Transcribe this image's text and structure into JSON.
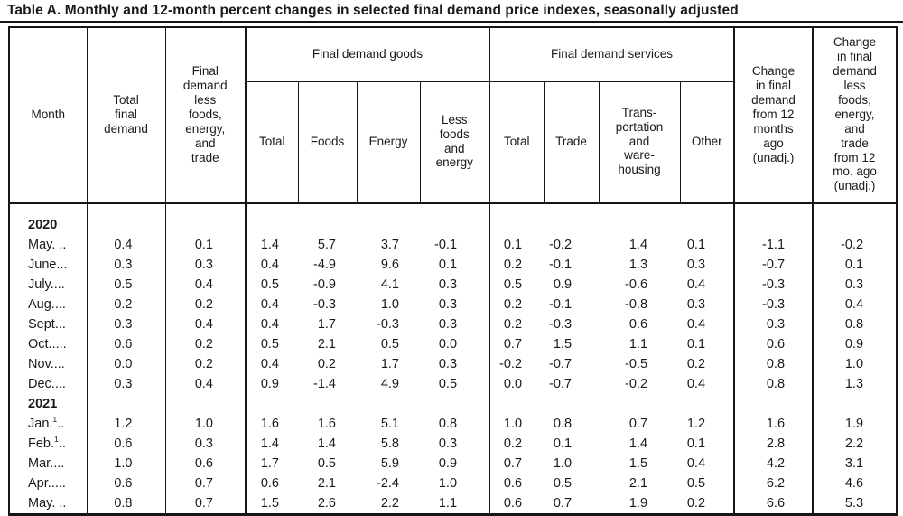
{
  "title": "Table A. Monthly and 12-month percent changes in selected final demand price indexes, seasonally adjusted",
  "table": {
    "header": {
      "month": "Month",
      "total_final_demand": "Total\nfinal\ndemand",
      "less_fet": "Final\ndemand\nless\nfoods,\nenergy,\nand\ntrade",
      "goods_group": "Final demand goods",
      "goods_cols": [
        "Total",
        "Foods",
        "Energy",
        "Less\nfoods\nand\nenergy"
      ],
      "services_group": "Final demand services",
      "services_cols": [
        "Total",
        "Trade",
        "Trans-\nportation\nand\nware-\nhousing",
        "Other"
      ],
      "change_12mo": "Change\nin final\ndemand\nfrom 12\nmonths\nago\n(unadj.)",
      "change_12mo_less_fet": "Change\nin final\ndemand\nless\nfoods,\nenergy,\nand\ntrade\nfrom 12\nmo. ago\n(unadj.)"
    },
    "rows": [
      {
        "type": "year",
        "label": "2020"
      },
      {
        "type": "data",
        "month": "May. ..",
        "sup": "",
        "trail": "",
        "values": [
          "0.4",
          "0.1",
          "1.4",
          "5.7",
          "3.7",
          "-0.1",
          "0.1",
          "-0.2",
          "1.4",
          "0.1",
          "-1.1",
          "-0.2"
        ]
      },
      {
        "type": "data",
        "month": "June...",
        "sup": "",
        "trail": "",
        "values": [
          "0.3",
          "0.3",
          "0.4",
          "-4.9",
          "9.6",
          "0.1",
          "0.2",
          "-0.1",
          "1.3",
          "0.3",
          "-0.7",
          "0.1"
        ]
      },
      {
        "type": "data",
        "month": "July....",
        "sup": "",
        "trail": "",
        "values": [
          "0.5",
          "0.4",
          "0.5",
          "-0.9",
          "4.1",
          "0.3",
          "0.5",
          "0.9",
          "-0.6",
          "0.4",
          "-0.3",
          "0.3"
        ]
      },
      {
        "type": "data",
        "month": "Aug....",
        "sup": "",
        "trail": "",
        "values": [
          "0.2",
          "0.2",
          "0.4",
          "-0.3",
          "1.0",
          "0.3",
          "0.2",
          "-0.1",
          "-0.8",
          "0.3",
          "-0.3",
          "0.4"
        ]
      },
      {
        "type": "data",
        "month": "Sept...",
        "sup": "",
        "trail": "",
        "values": [
          "0.3",
          "0.4",
          "0.4",
          "1.7",
          "-0.3",
          "0.3",
          "0.2",
          "-0.3",
          "0.6",
          "0.4",
          "0.3",
          "0.8"
        ]
      },
      {
        "type": "data",
        "month": "Oct.....",
        "sup": "",
        "trail": "",
        "values": [
          "0.6",
          "0.2",
          "0.5",
          "2.1",
          "0.5",
          "0.0",
          "0.7",
          "1.5",
          "1.1",
          "0.1",
          "0.6",
          "0.9"
        ]
      },
      {
        "type": "data",
        "month": "Nov....",
        "sup": "",
        "trail": "",
        "values": [
          "0.0",
          "0.2",
          "0.4",
          "0.2",
          "1.7",
          "0.3",
          "-0.2",
          "-0.7",
          "-0.5",
          "0.2",
          "0.8",
          "1.0"
        ]
      },
      {
        "type": "data",
        "month": "Dec....",
        "sup": "",
        "trail": "",
        "values": [
          "0.3",
          "0.4",
          "0.9",
          "-1.4",
          "4.9",
          "0.5",
          "0.0",
          "-0.7",
          "-0.2",
          "0.4",
          "0.8",
          "1.3"
        ]
      },
      {
        "type": "year",
        "label": "2021"
      },
      {
        "type": "data",
        "month": "Jan.",
        "sup": "1",
        "trail": "..",
        "values": [
          "1.2",
          "1.0",
          "1.6",
          "1.6",
          "5.1",
          "0.8",
          "1.0",
          "0.8",
          "0.7",
          "1.2",
          "1.6",
          "1.9"
        ]
      },
      {
        "type": "data",
        "month": "Feb.",
        "sup": "1",
        "trail": "..",
        "values": [
          "0.6",
          "0.3",
          "1.4",
          "1.4",
          "5.8",
          "0.3",
          "0.2",
          "0.1",
          "1.4",
          "0.1",
          "2.8",
          "2.2"
        ]
      },
      {
        "type": "data",
        "month": "Mar....",
        "sup": "",
        "trail": "",
        "values": [
          "1.0",
          "0.6",
          "1.7",
          "0.5",
          "5.9",
          "0.9",
          "0.7",
          "1.0",
          "1.5",
          "0.4",
          "4.2",
          "3.1"
        ]
      },
      {
        "type": "data",
        "month": "Apr.....",
        "sup": "",
        "trail": "",
        "values": [
          "0.6",
          "0.7",
          "0.6",
          "2.1",
          "-2.4",
          "1.0",
          "0.6",
          "0.5",
          "2.1",
          "0.5",
          "6.2",
          "4.6"
        ]
      },
      {
        "type": "data",
        "month": "May. ..",
        "sup": "",
        "trail": "",
        "values": [
          "0.8",
          "0.7",
          "1.5",
          "2.6",
          "2.2",
          "1.1",
          "0.6",
          "0.7",
          "1.9",
          "0.2",
          "6.6",
          "5.3"
        ]
      }
    ]
  }
}
